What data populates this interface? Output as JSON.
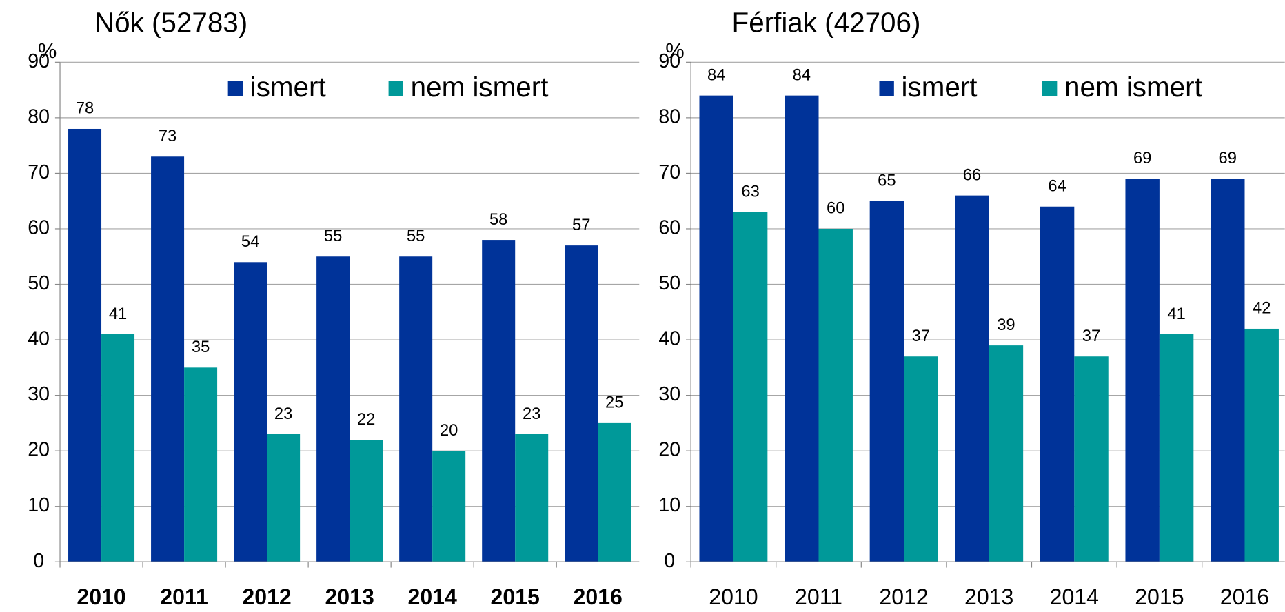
{
  "chart_data": [
    {
      "type": "bar",
      "title": "Nők (52783)",
      "y_label": "%",
      "categories": [
        "2010",
        "2011",
        "2012",
        "2013",
        "2014",
        "2015",
        "2016"
      ],
      "series": [
        {
          "name": "ismert",
          "color": "#003399",
          "values": [
            78,
            73,
            54,
            55,
            55,
            58,
            57
          ]
        },
        {
          "name": "nem ismert",
          "color": "#009999",
          "values": [
            41,
            35,
            23,
            22,
            20,
            23,
            25
          ]
        }
      ],
      "ylim": [
        0,
        90
      ],
      "yticks": [
        0,
        10,
        20,
        30,
        40,
        50,
        60,
        70,
        80,
        90
      ],
      "grid": true,
      "legend": "top"
    },
    {
      "type": "bar",
      "title": "Férfiak (42706)",
      "y_label": "%",
      "categories": [
        "2010",
        "2011",
        "2012",
        "2013",
        "2014",
        "2015",
        "2016"
      ],
      "series": [
        {
          "name": "ismert",
          "color": "#003399",
          "values": [
            84,
            84,
            65,
            66,
            64,
            69,
            69
          ]
        },
        {
          "name": "nem ismert",
          "color": "#009999",
          "values": [
            63,
            60,
            37,
            39,
            37,
            41,
            42
          ]
        }
      ],
      "ylim": [
        0,
        90
      ],
      "yticks": [
        0,
        10,
        20,
        30,
        40,
        50,
        60,
        70,
        80,
        90
      ],
      "grid": true,
      "legend": "top"
    }
  ]
}
